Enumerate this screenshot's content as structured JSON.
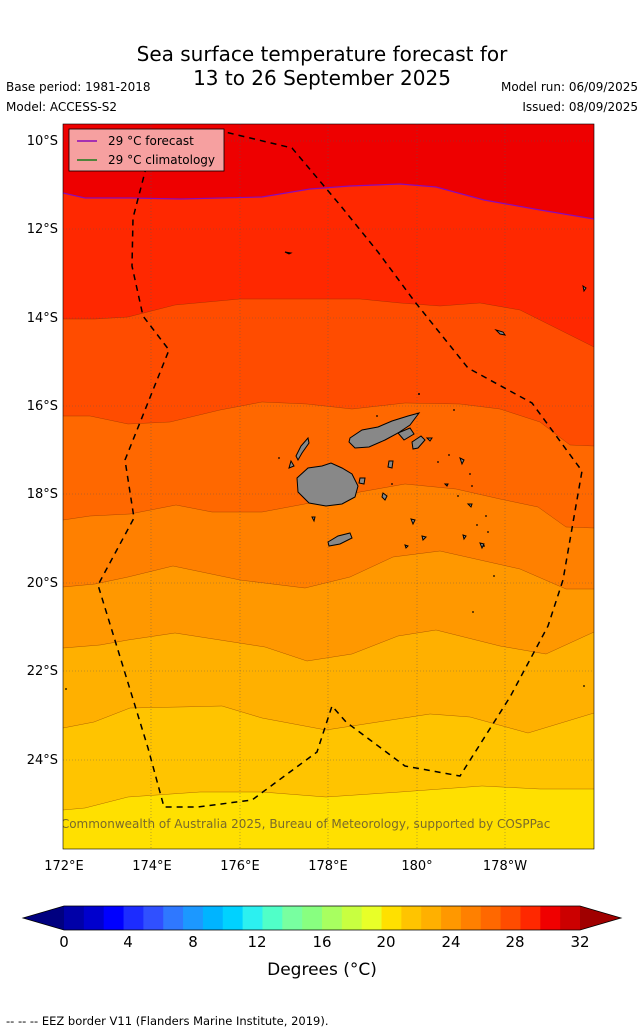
{
  "title_line1": "Sea surface temperature forecast for",
  "title_line2": "13 to 26 September 2025",
  "base_period": "Base period: 1981-2018",
  "model": "Model: ACCESS-S2",
  "model_run": "Model run: 06/09/2025",
  "issued": "Issued: 08/09/2025",
  "legend": {
    "forecast_label": "29 °C  forecast",
    "forecast_color": "#8b0ab8",
    "clim_label": "29 °C  climatology",
    "clim_color": "#1a7a1a"
  },
  "lat_labels": [
    "10°S",
    "12°S",
    "14°S",
    "16°S",
    "18°S",
    "20°S",
    "22°S",
    "24°S"
  ],
  "lon_labels": [
    "172°E",
    "174°E",
    "176°E",
    "178°E",
    "180°",
    "178°W"
  ],
  "copyright": "© Commonwealth of Australia 2025, Bureau of Meteorology, supported by COSPPac",
  "colorbar": {
    "ticks": [
      "0",
      "4",
      "8",
      "12",
      "16",
      "20",
      "24",
      "28",
      "32"
    ],
    "label": "Degrees (°C)",
    "colors": [
      "#000080",
      "#0000a8",
      "#0000cd",
      "#0000ff",
      "#1c2cff",
      "#3050ff",
      "#2f78ff",
      "#1c98ff",
      "#00b4ff",
      "#00d2ff",
      "#2cf0f0",
      "#50ffc8",
      "#78ffa0",
      "#88ff80",
      "#a8ff60",
      "#c8ff40",
      "#e8ff28",
      "#ffe000",
      "#ffc400",
      "#ffb000",
      "#ff9800",
      "#ff8000",
      "#ff6800",
      "#ff4c00",
      "#ff2800",
      "#f00000",
      "#cc0000",
      "#a00000"
    ]
  },
  "footnote": "--  --  -- EEZ border V11 (Flanders Marine Institute, 2019)."
}
